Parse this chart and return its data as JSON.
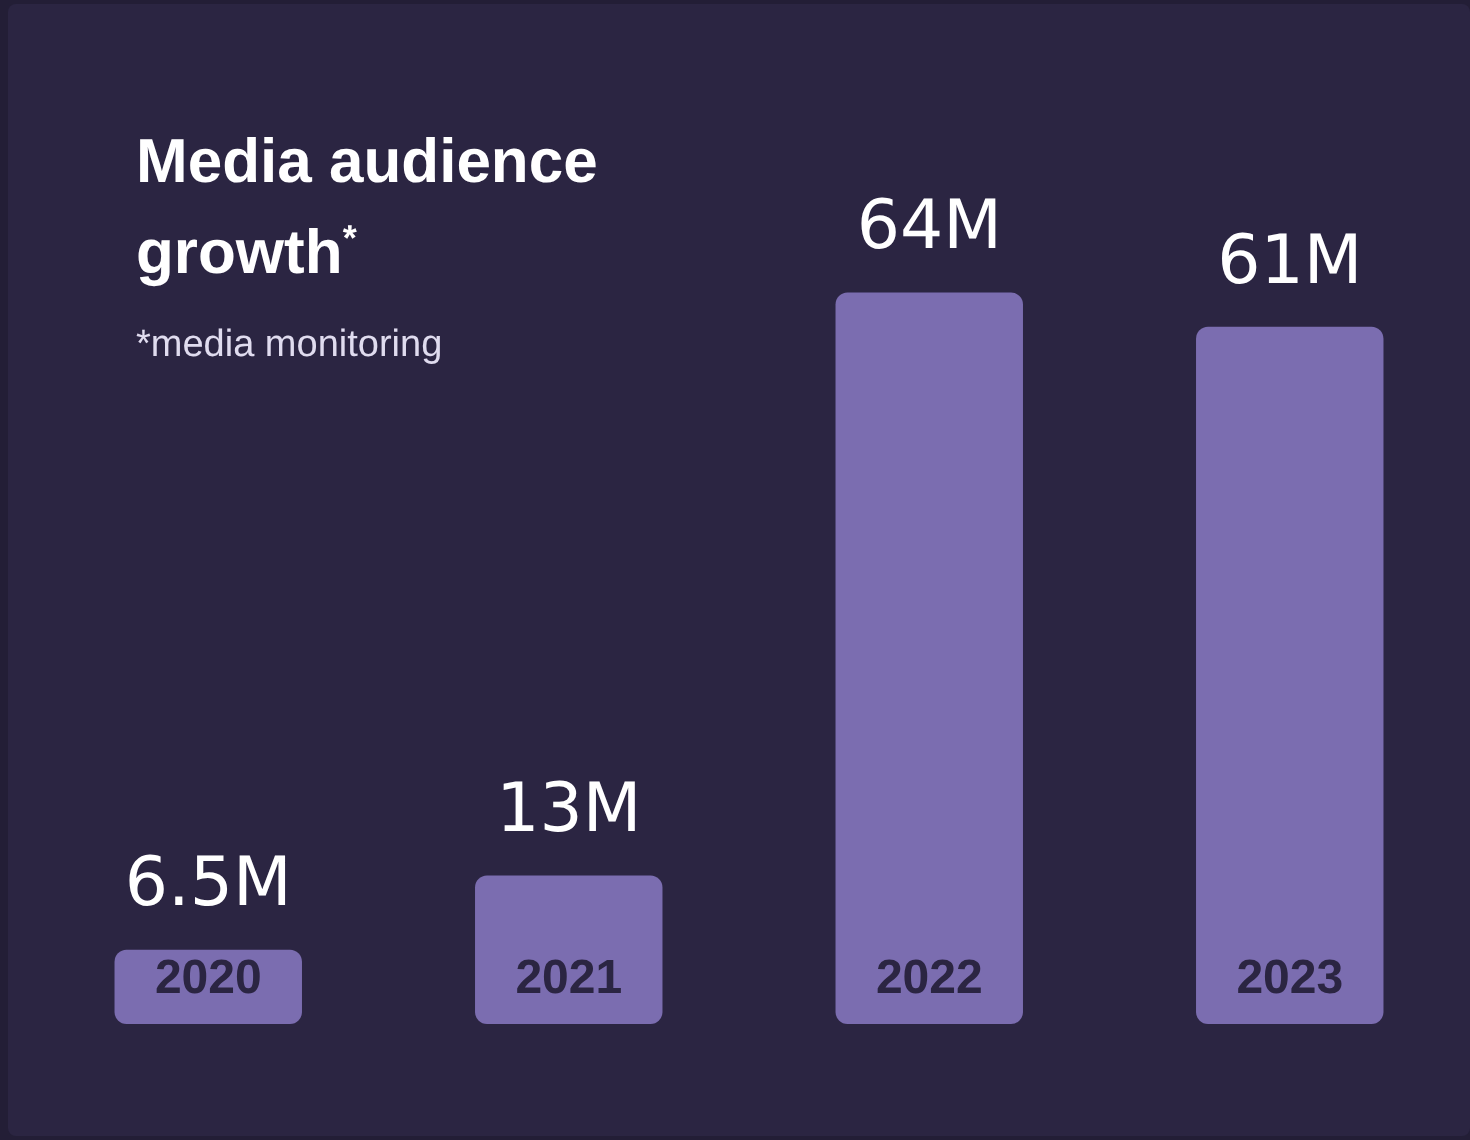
{
  "chart_data": {
    "type": "bar",
    "title": "Media audience growth$^{*}$",
    "annotations": [
      "*media monitoring"
    ],
    "categories": [
      "2020",
      "2021",
      "2022",
      "2023"
    ],
    "values": [
      6.5,
      13,
      64,
      61
    ],
    "value_labels": [
      "6.5M",
      "13M",
      "64M",
      "61M"
    ],
    "color": "#7b6db0"
  }
}
